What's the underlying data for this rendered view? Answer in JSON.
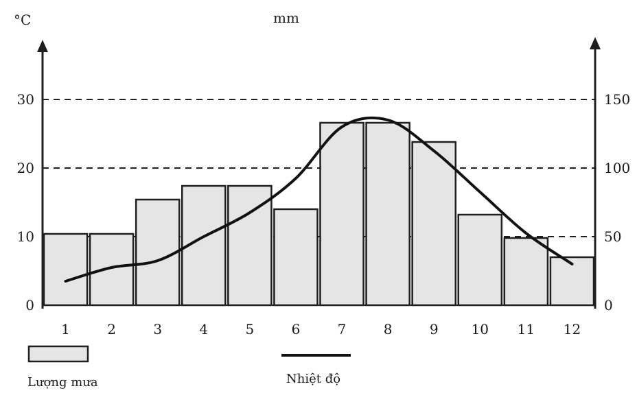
{
  "chart_data": {
    "type": "bar-line",
    "categories": [
      "1",
      "2",
      "3",
      "4",
      "5",
      "6",
      "7",
      "8",
      "9",
      "10",
      "11",
      "12"
    ],
    "series": [
      {
        "name": "Lượng mưa",
        "kind": "bar",
        "axis": "right",
        "values": [
          52,
          52,
          77,
          87,
          87,
          70,
          133,
          133,
          119,
          66,
          49,
          35
        ]
      },
      {
        "name": "Nhiệt độ",
        "kind": "line",
        "axis": "left",
        "values": [
          3.5,
          5.5,
          6.5,
          10,
          13.5,
          18.5,
          26,
          27,
          22.5,
          16.5,
          10.5,
          6
        ]
      }
    ],
    "left_axis": {
      "unit": "°C",
      "ticks": [
        "0",
        "10",
        "20",
        "30"
      ],
      "range": [
        0,
        40
      ]
    },
    "right_axis": {
      "unit": "mm",
      "ticks": [
        "0",
        "50",
        "100",
        "150"
      ],
      "range": [
        0,
        200
      ]
    },
    "gridlines": [
      50,
      100,
      150
    ],
    "colors": {
      "bar_fill": "#e6e4e5",
      "stroke": "#1f1f1f"
    },
    "legend": {
      "items": [
        {
          "label": "Lượng mưa",
          "symbol": "bar"
        },
        {
          "label": "Nhiệt độ",
          "symbol": "line"
        }
      ],
      "placement": "bottom"
    }
  }
}
